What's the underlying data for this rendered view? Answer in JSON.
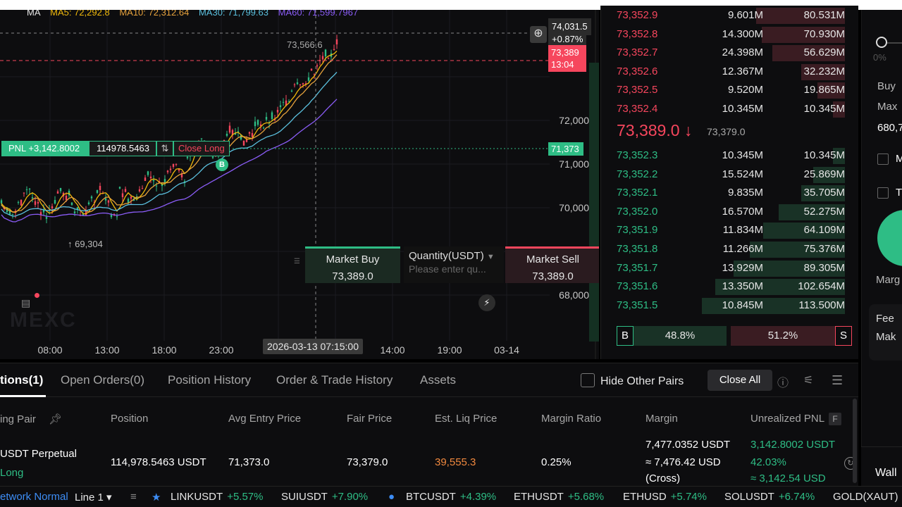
{
  "chart": {
    "ma_legend": [
      {
        "label": "MA",
        "color": "#e6e6e6"
      },
      {
        "label": "MA5: 72,292.8",
        "color": "#f0b90b"
      },
      {
        "label": "MA10: 72,312.64",
        "color": "#e6a23c"
      },
      {
        "label": "MA30: 71,799.63",
        "color": "#5bc0de"
      },
      {
        "label": "MA60: 71,599.7967",
        "color": "#8a5cf6"
      }
    ],
    "price_axis": [
      "72,000",
      "71,000",
      "70,000",
      "68,000"
    ],
    "time_axis": [
      "08:00",
      "13:00",
      "18:00",
      "23:00",
      "14:00",
      "19:00",
      "03-14"
    ],
    "hover_time": "2026-03-13 07:15:00",
    "hover_price": "74,031.5",
    "hover_change": "+0.87%",
    "current_price_tag": "73,389",
    "countdown": "13:04",
    "entry_price_tag": "71,373",
    "high_label": "73,566.6",
    "low_label": "↑ 69,304",
    "pnl_label": "PNL +3,142.8002",
    "position_qty": "114978.5463",
    "close_long": "Close Long",
    "buy_marker": "B",
    "watermark": "MEXC"
  },
  "quick_trade": {
    "market_buy": "Market Buy",
    "buy_price": "73,389.0",
    "quantity_label": "Quantity(USDT)",
    "quantity_placeholder": "Please enter qu...",
    "market_sell": "Market Sell",
    "sell_price": "73,389.0",
    "close": "✕",
    "bolt": "⚡"
  },
  "order_book": {
    "asks": [
      {
        "price": "73,352.9",
        "amount": "9.601M",
        "total": "80.531M",
        "depth": 0.59
      },
      {
        "price": "73,352.8",
        "amount": "14.300M",
        "total": "70.930M",
        "depth": 0.55
      },
      {
        "price": "73,352.7",
        "amount": "24.398M",
        "total": "56.629M",
        "depth": 0.48
      },
      {
        "price": "73,352.6",
        "amount": "12.367M",
        "total": "32.232M",
        "depth": 0.29
      },
      {
        "price": "73,352.5",
        "amount": "9.520M",
        "total": "19.865M",
        "depth": 0.18
      },
      {
        "price": "73,352.4",
        "amount": "10.345M",
        "total": "10.345M",
        "depth": 0.08
      }
    ],
    "mid_price": "73,389.0 ↓",
    "mark_price": "73,379.0",
    "bids": [
      {
        "price": "73,352.3",
        "amount": "10.345M",
        "total": "10.345M",
        "depth": 0.08
      },
      {
        "price": "73,352.2",
        "amount": "15.524M",
        "total": "25.869M",
        "depth": 0.21
      },
      {
        "price": "73,352.1",
        "amount": "9.835M",
        "total": "35.705M",
        "depth": 0.29
      },
      {
        "price": "73,352.0",
        "amount": "16.570M",
        "total": "52.275M",
        "depth": 0.44
      },
      {
        "price": "73,351.9",
        "amount": "11.834M",
        "total": "64.109M",
        "depth": 0.54
      },
      {
        "price": "73,351.8",
        "amount": "11.266M",
        "total": "75.376M",
        "depth": 0.63
      },
      {
        "price": "73,351.7",
        "amount": "13.929M",
        "total": "89.305M",
        "depth": 0.74
      },
      {
        "price": "73,351.6",
        "amount": "13.350M",
        "total": "102.654M",
        "depth": 0.86
      },
      {
        "price": "73,351.5",
        "amount": "10.845M",
        "total": "113.500M",
        "depth": 0.95
      }
    ],
    "buy_label": "B",
    "buy_pct": "48.8%",
    "sell_pct": "51.2%",
    "sell_label": "S"
  },
  "right_panel": {
    "pct": "0%",
    "buy": "Buy",
    "max": "Max",
    "max_value": "680,7",
    "opt1": "M",
    "opt2": "T",
    "margin": "Marg",
    "fee": "Fee",
    "maker": "Mak",
    "wallet": "Wall"
  },
  "positions": {
    "tabs": [
      "tions(1)",
      "Open Orders(0)",
      "Position History",
      "Order & Trade History",
      "Assets"
    ],
    "hide_other_pairs": "Hide Other Pairs",
    "close_all": "Close All",
    "columns": [
      "ing Pair",
      "Position",
      "Avg Entry Price",
      "Fair Price",
      "Est. Liq Price",
      "Margin Ratio",
      "Margin",
      "Unrealized PNL"
    ],
    "pnl_badge": "F",
    "row": {
      "pair": "USDT  Perpetual",
      "side": "Long",
      "position": "114,978.5463 USDT",
      "avg_entry": "71,373.0",
      "fair_price": "73,379.0",
      "liq_price": "39,555.3",
      "margin_ratio": "0.25%",
      "margin_1": "7,477.0352 USDT",
      "margin_2": "≈ 7,476.42 USD",
      "margin_3": "(Cross)",
      "pnl_1": "3,142.8002 USDT",
      "pnl_2": "42.03%",
      "pnl_3": "≈ 3,142.54 USD"
    }
  },
  "ticker": {
    "network": "etwork Normal",
    "line": "Line 1 ▾",
    "items": [
      {
        "symbol": "LINKUSDT",
        "change": "+5.57%"
      },
      {
        "symbol": "SUIUSDT",
        "change": "+7.90%"
      },
      {
        "symbol": "BTCUSDT",
        "change": "+4.39%"
      },
      {
        "symbol": "ETHUSDT",
        "change": "+5.68%"
      },
      {
        "symbol": "ETHUSD",
        "change": "+5.74%"
      },
      {
        "symbol": "SOLUSDT",
        "change": "+6.74%"
      },
      {
        "symbol": "GOLD(XAUT)",
        "change": ""
      }
    ]
  },
  "colors": {
    "up": "#2ebd85",
    "down": "#f6465d",
    "accent": "#3d8df5"
  }
}
